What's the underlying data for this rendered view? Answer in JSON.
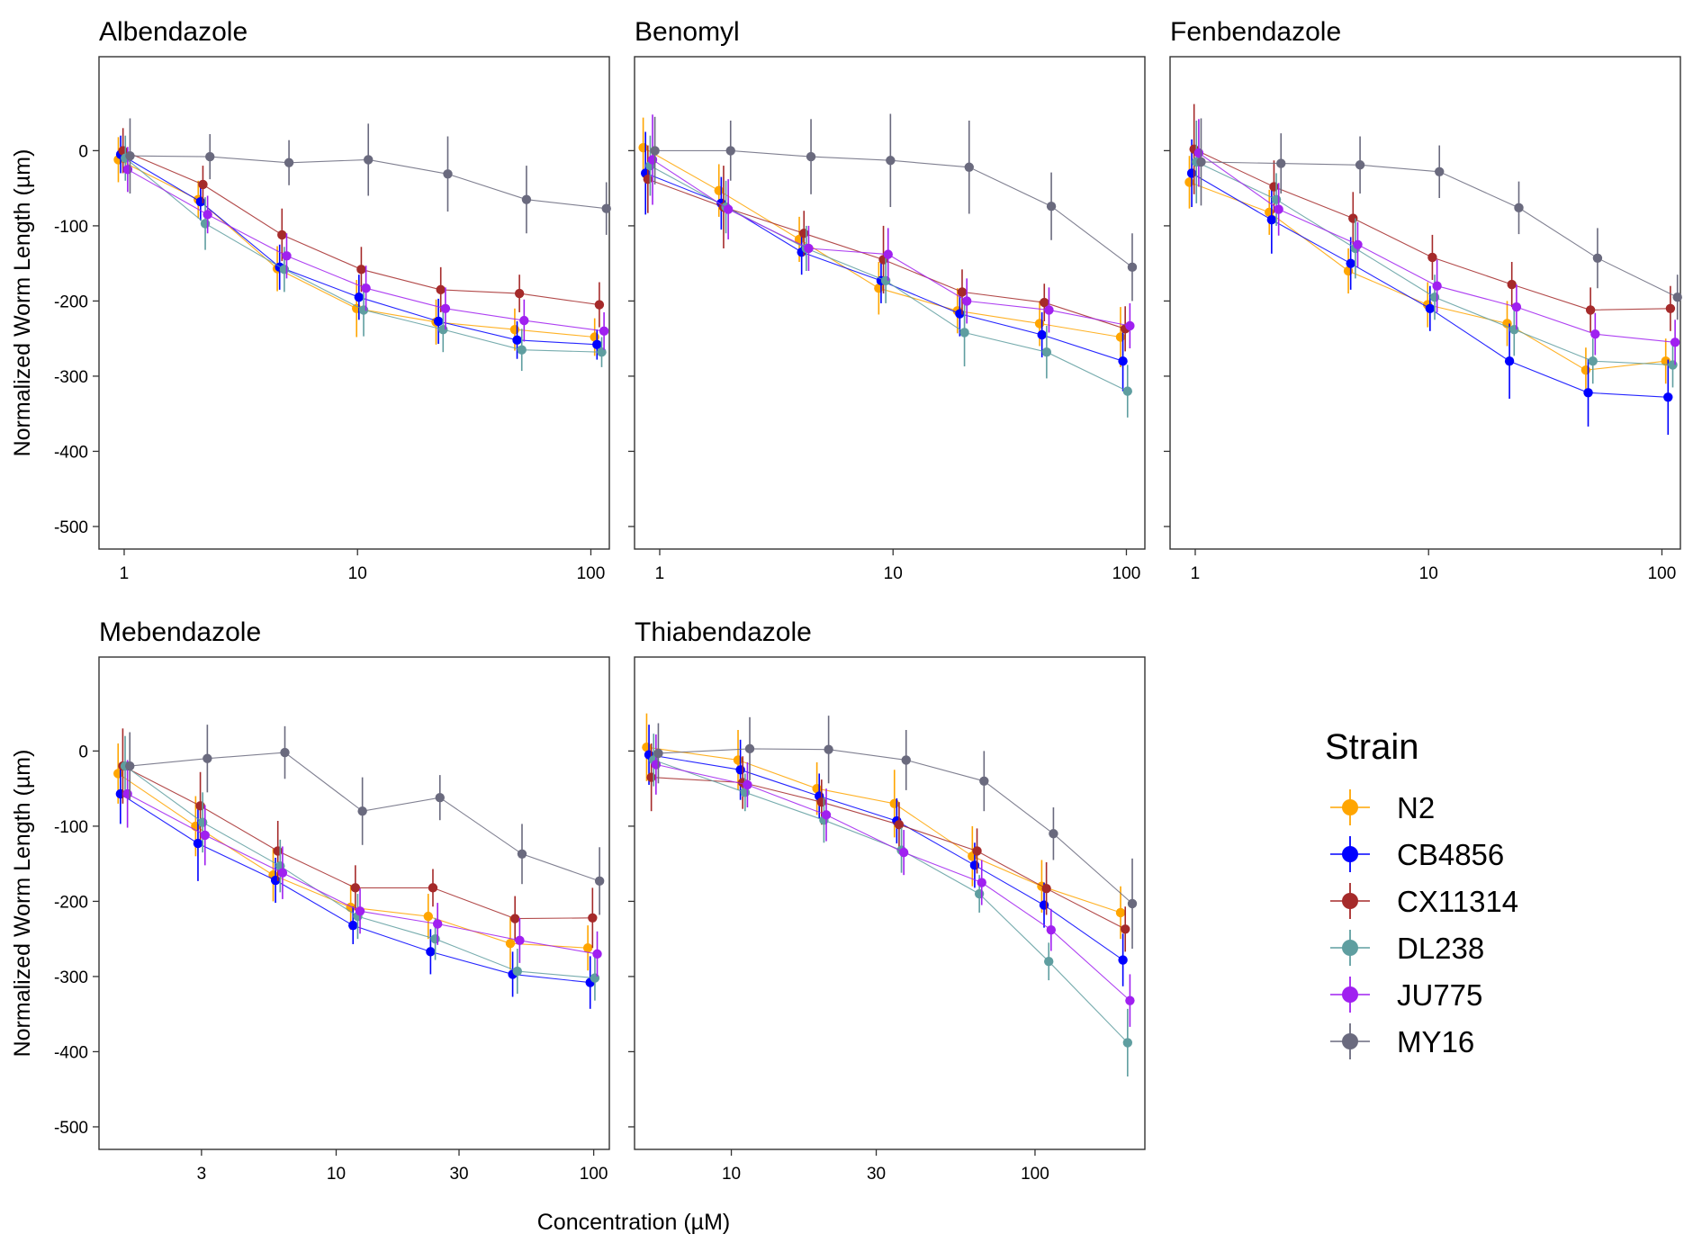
{
  "chart_data": {
    "type": "line",
    "xlabel": "Concentration (µM)",
    "ylabel": "Normalized Worm Length (µm)",
    "x_scale": "log",
    "ylim": [
      -530,
      125
    ],
    "y_ticks": [
      0,
      -100,
      -200,
      -300,
      -400,
      -500
    ],
    "y_tick_labels": [
      "0",
      "-100",
      "-200",
      "-300",
      "-400",
      "-500"
    ],
    "grid": false,
    "legend": {
      "title": "Strain",
      "placement": "right",
      "entries": [
        "N2",
        "CB4856",
        "CX11314",
        "DL238",
        "JU775",
        "MY16"
      ]
    },
    "series_colors": {
      "N2": "#FFA500",
      "CB4856": "#0000FF",
      "CX11314": "#A52A2A",
      "DL238": "#5F9EA0",
      "JU775": "#A020F0",
      "MY16": "#6A6A7E"
    },
    "panels": [
      {
        "title": "Albendazole",
        "xlim": [
          0.78,
          120
        ],
        "x_ticks": [
          1,
          10,
          100
        ],
        "x_tick_labels": [
          "1",
          "10",
          "100"
        ],
        "x": [
          1,
          2.2,
          4.8,
          10.5,
          23,
          50,
          110
        ],
        "series": [
          {
            "name": "N2",
            "values": [
              -12,
              -65,
              -157,
              -210,
              -228,
              -238,
              -248
            ],
            "err": [
              30,
              25,
              30,
              38,
              30,
              28,
              25
            ]
          },
          {
            "name": "CB4856",
            "values": [
              -5,
              -68,
              -155,
              -195,
              -227,
              -252,
              -258
            ],
            "err": [
              25,
              25,
              30,
              30,
              30,
              25,
              20
            ]
          },
          {
            "name": "CX11314",
            "values": [
              0,
              -45,
              -112,
              -158,
              -185,
              -190,
              -205
            ],
            "err": [
              30,
              25,
              35,
              30,
              30,
              25,
              30
            ]
          },
          {
            "name": "DL238",
            "values": [
              -10,
              -97,
              -158,
              -212,
              -238,
              -265,
              -268
            ],
            "err": [
              30,
              35,
              30,
              35,
              30,
              28,
              20
            ]
          },
          {
            "name": "JU775",
            "values": [
              -25,
              -85,
              -140,
              -183,
              -210,
              -226,
              -240
            ],
            "err": [
              30,
              25,
              30,
              30,
              28,
              28,
              25
            ]
          },
          {
            "name": "MY16",
            "values": [
              -7,
              -8,
              -16,
              -12,
              -31,
              -65,
              -77
            ],
            "err": [
              50,
              30,
              30,
              48,
              50,
              45,
              35
            ]
          }
        ]
      },
      {
        "title": "Benomyl",
        "xlim": [
          0.78,
          120
        ],
        "x_ticks": [
          1,
          10,
          100
        ],
        "x_tick_labels": [
          "1",
          "10",
          "100"
        ],
        "x": [
          0.9,
          1.9,
          4.2,
          9.2,
          20,
          45,
          100
        ],
        "series": [
          {
            "name": "N2",
            "values": [
              4,
              -53,
              -118,
              -183,
              -213,
              -230,
              -248
            ],
            "err": [
              40,
              35,
              30,
              35,
              30,
              30,
              40
            ]
          },
          {
            "name": "CB4856",
            "values": [
              -30,
              -70,
              -135,
              -173,
              -217,
              -245,
              -280
            ],
            "err": [
              55,
              35,
              30,
              30,
              30,
              30,
              40
            ]
          },
          {
            "name": "CX11314",
            "values": [
              -38,
              -75,
              -110,
              -145,
              -188,
              -202,
              -237
            ],
            "err": [
              45,
              55,
              30,
              45,
              30,
              25,
              30
            ]
          },
          {
            "name": "DL238",
            "values": [
              -20,
              -75,
              -130,
              -173,
              -242,
              -268,
              -320
            ],
            "err": [
              40,
              35,
              30,
              30,
              45,
              35,
              35
            ]
          },
          {
            "name": "JU775",
            "values": [
              -12,
              -78,
              -130,
              -138,
              -200,
              -212,
              -233
            ],
            "err": [
              60,
              40,
              30,
              35,
              30,
              30,
              30
            ]
          },
          {
            "name": "MY16",
            "values": [
              0,
              0,
              -8,
              -13,
              -22,
              -74,
              -155
            ],
            "err": [
              45,
              40,
              50,
              62,
              62,
              45,
              45
            ]
          }
        ]
      },
      {
        "title": "Fenbendazole",
        "xlim": [
          0.78,
          120
        ],
        "x_ticks": [
          1,
          10,
          100
        ],
        "x_tick_labels": [
          "1",
          "10",
          "100"
        ],
        "x": [
          1,
          2.2,
          4.8,
          10.5,
          23,
          50,
          110
        ],
        "series": [
          {
            "name": "N2",
            "values": [
              -42,
              -82,
              -160,
              -205,
              -230,
              -292,
              -280
            ],
            "err": [
              35,
              30,
              30,
              30,
              30,
              30,
              30
            ]
          },
          {
            "name": "CB4856",
            "values": [
              -30,
              -92,
              -150,
              -210,
              -280,
              -322,
              -328
            ],
            "err": [
              45,
              45,
              35,
              30,
              50,
              45,
              50
            ]
          },
          {
            "name": "CX11314",
            "values": [
              2,
              -48,
              -90,
              -142,
              -178,
              -212,
              -210
            ],
            "err": [
              60,
              35,
              35,
              30,
              30,
              30,
              30
            ]
          },
          {
            "name": "DL238",
            "values": [
              -15,
              -65,
              -130,
              -195,
              -238,
              -280,
              -285
            ],
            "err": [
              55,
              35,
              40,
              30,
              35,
              30,
              30
            ]
          },
          {
            "name": "JU775",
            "values": [
              -3,
              -78,
              -125,
              -180,
              -208,
              -244,
              -255
            ],
            "err": [
              45,
              35,
              30,
              35,
              30,
              28,
              30
            ]
          },
          {
            "name": "MY16",
            "values": [
              -15,
              -17,
              -19,
              -28,
              -76,
              -143,
              -195
            ],
            "err": [
              58,
              40,
              38,
              35,
              35,
              40,
              30
            ]
          }
        ]
      },
      {
        "title": "Mebendazole",
        "xlim": [
          1.2,
          115
        ],
        "x_ticks": [
          3,
          10,
          30,
          100
        ],
        "x_tick_labels": [
          "3",
          "10",
          "30",
          "100"
        ],
        "x": [
          1.5,
          3,
          6,
          12,
          24,
          50,
          100
        ],
        "series": [
          {
            "name": "N2",
            "values": [
              -30,
              -100,
              -165,
              -208,
              -220,
              -256,
              -262
            ],
            "err": [
              40,
              40,
              35,
              30,
              30,
              35,
              30
            ]
          },
          {
            "name": "CB4856",
            "values": [
              -57,
              -123,
              -172,
              -232,
              -267,
              -297,
              -308
            ],
            "err": [
              40,
              50,
              30,
              25,
              30,
              30,
              35
            ]
          },
          {
            "name": "CX11314",
            "values": [
              -20,
              -73,
              -133,
              -182,
              -182,
              -223,
              -222
            ],
            "err": [
              50,
              45,
              40,
              30,
              25,
              30,
              40
            ]
          },
          {
            "name": "DL238",
            "values": [
              -20,
              -95,
              -153,
              -220,
              -250,
              -293,
              -302
            ],
            "err": [
              40,
              40,
              35,
              30,
              28,
              30,
              30
            ]
          },
          {
            "name": "JU775",
            "values": [
              -57,
              -112,
              -162,
              -213,
              -230,
              -252,
              -270
            ],
            "err": [
              45,
              40,
              35,
              30,
              28,
              30,
              30
            ]
          },
          {
            "name": "MY16",
            "values": [
              -20,
              -10,
              -2,
              -80,
              -62,
              -137,
              -173
            ],
            "err": [
              45,
              45,
              35,
              45,
              30,
              40,
              45
            ]
          }
        ]
      },
      {
        "title": "Thiabendazole",
        "xlim": [
          4.8,
          230
        ],
        "x_ticks": [
          10,
          30,
          100
        ],
        "x_tick_labels": [
          "10",
          "30",
          "100"
        ],
        "x": [
          5.5,
          11,
          20,
          36,
          65,
          110,
          200
        ],
        "series": [
          {
            "name": "N2",
            "values": [
              5,
              -12,
              -50,
              -70,
              -140,
              -180,
              -215
            ],
            "err": [
              45,
              40,
              35,
              45,
              40,
              35,
              35
            ]
          },
          {
            "name": "CB4856",
            "values": [
              -5,
              -25,
              -60,
              -93,
              -152,
              -205,
              -278
            ],
            "err": [
              40,
              40,
              30,
              30,
              30,
              30,
              35
            ]
          },
          {
            "name": "CX11314",
            "values": [
              -35,
              -42,
              -68,
              -98,
              -133,
              -183,
              -237
            ],
            "err": [
              45,
              35,
              30,
              30,
              30,
              35,
              30
            ]
          },
          {
            "name": "DL238",
            "values": [
              -12,
              -55,
              -92,
              -132,
              -190,
              -280,
              -388
            ],
            "err": [
              35,
              25,
              30,
              30,
              25,
              25,
              45
            ]
          },
          {
            "name": "JU775",
            "values": [
              -18,
              -45,
              -85,
              -135,
              -175,
              -238,
              -332
            ],
            "err": [
              40,
              30,
              35,
              30,
              30,
              28,
              35
            ]
          },
          {
            "name": "MY16",
            "values": [
              -3,
              3,
              2,
              -12,
              -40,
              -110,
              -203
            ],
            "err": [
              40,
              42,
              45,
              40,
              40,
              35,
              60
            ]
          }
        ]
      }
    ]
  }
}
